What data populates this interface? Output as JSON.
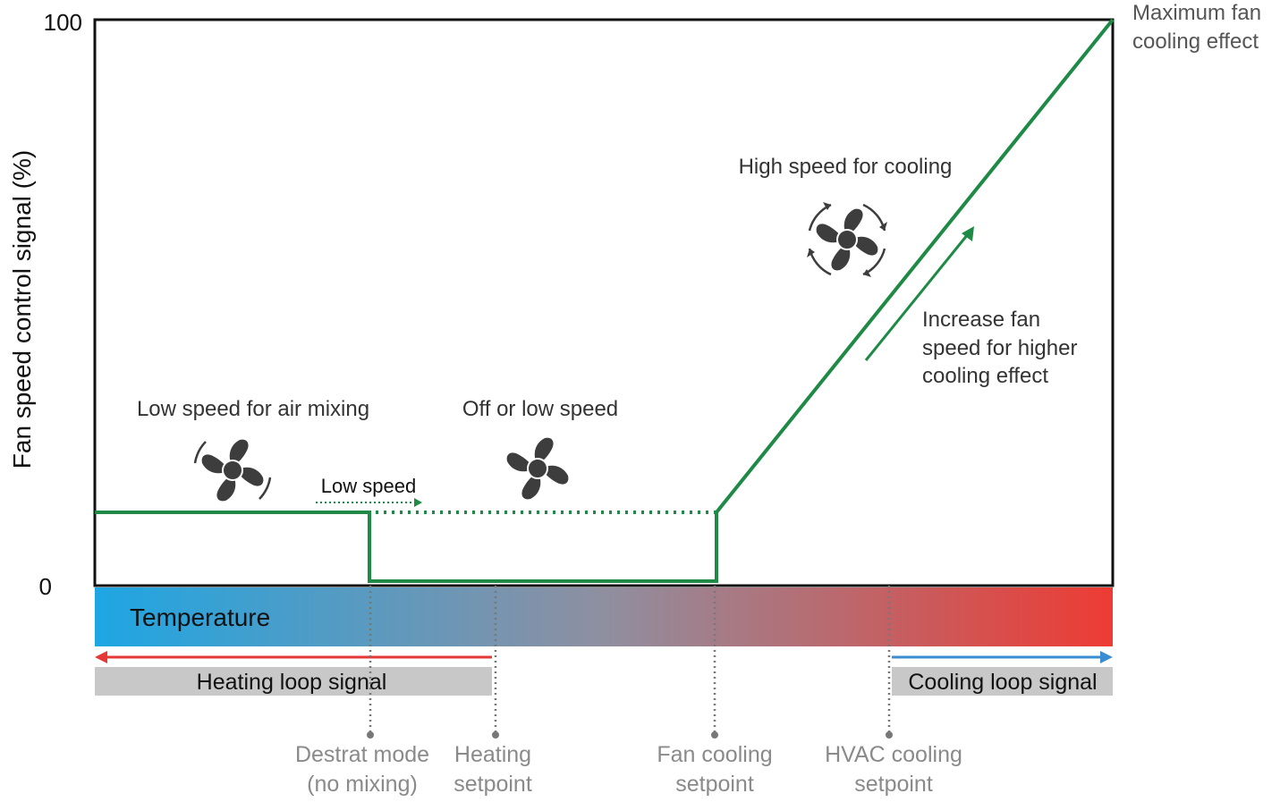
{
  "axis": {
    "y_label": "Fan speed control signal (%)",
    "y_max_label": "100",
    "y_min_label": "0"
  },
  "chart_data": {
    "type": "line",
    "ylim": [
      0,
      100
    ],
    "series": [
      {
        "name": "",
        "points": [
          {
            "x": "start",
            "y": 13
          },
          {
            "x": "Destrat mode",
            "y": 13
          },
          {
            "x": "Destrat mode",
            "y": 0
          },
          {
            "x": "Fan cooling setpoint",
            "y": 0
          },
          {
            "x": "Fan cooling setpoint",
            "y": 13
          },
          {
            "x": "end",
            "y": 100
          }
        ]
      }
    ]
  },
  "annotations": {
    "max_effect_line1": "Maximum fan",
    "max_effect_line2": "cooling effect",
    "high_speed": "High speed for cooling",
    "increase_line1": "Increase fan",
    "increase_line2": "speed for higher",
    "increase_line3": "cooling effect",
    "low_speed_mixing": "Low speed for air mixing",
    "off_or_low": "Off or low speed",
    "low_speed": "Low speed"
  },
  "temperature_bar": {
    "label": "Temperature",
    "color_cold": "#1ea6e3",
    "color_mid": "#8f8fa0",
    "color_hot": "#ee3b33"
  },
  "loops": {
    "heating": "Heating loop signal",
    "cooling": "Cooling loop signal",
    "heating_arrow_color": "#e53935",
    "cooling_arrow_color": "#3a8dd0"
  },
  "setpoints": {
    "destrat_line1": "Destrat mode",
    "destrat_line2": "(no mixing)",
    "heating_line1": "Heating",
    "heating_line2": "setpoint",
    "fan_cooling_line1": "Fan cooling",
    "fan_cooling_line2": "setpoint",
    "hvac_cooling_line1": "HVAC cooling",
    "hvac_cooling_line2": "setpoint"
  },
  "colors": {
    "line": "#1e8a46",
    "fan": "#3d3d3d",
    "setpoint_text": "#8a8a8a"
  },
  "icons": [
    "fan-icon",
    "fan-rotating-icon"
  ]
}
